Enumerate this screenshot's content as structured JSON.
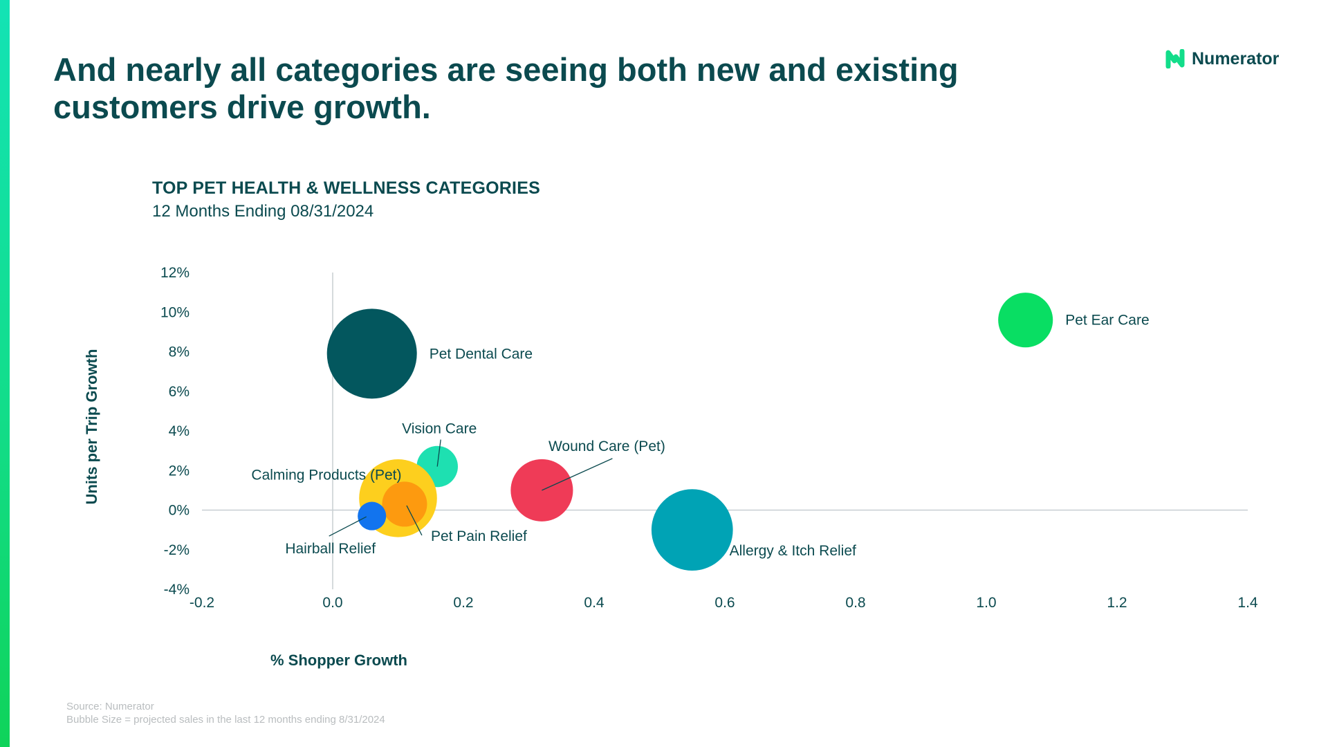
{
  "slide": {
    "headline_line1": "And nearly all categories are seeing both new and existing",
    "headline_line2": "customers drive growth.",
    "brand": "Numerator",
    "accent_color": "#13e3b5"
  },
  "footer": {
    "source": "Source: Numerator",
    "note": "Bubble Size = projected sales in the last 12 months ending 8/31/2024"
  },
  "chart_data": {
    "type": "scatter",
    "variant": "bubble",
    "title": "TOP PET HEALTH & WELLNESS CATEGORIES",
    "subtitle": "12 Months Ending 08/31/2024",
    "xlabel": "% Shopper Growth",
    "ylabel": "Units per Trip Growth",
    "xlim": [
      -0.2,
      1.4
    ],
    "ylim": [
      -4,
      12
    ],
    "x_ticks": [
      -0.2,
      0.0,
      0.2,
      0.4,
      0.6,
      0.8,
      1.0,
      1.2,
      1.4
    ],
    "x_tick_labels": [
      "-0.2",
      "0.0",
      "0.2",
      "0.4",
      "0.6",
      "0.8",
      "1.0",
      "1.2",
      "1.4"
    ],
    "y_ticks": [
      12,
      10,
      8,
      6,
      4,
      2,
      0,
      -2,
      -4
    ],
    "y_tick_labels": [
      "12%",
      "10%",
      "8%",
      "6%",
      "4%",
      "2%",
      "0%",
      "-2%",
      "-4%"
    ],
    "grid": false,
    "legend": "none",
    "series": [
      {
        "name": "Pet Dental Care",
        "x": 0.06,
        "y": 7.9,
        "size": 1.0,
        "color": "#03575e",
        "label_pos": "right"
      },
      {
        "name": "Pet Ear Care",
        "x": 1.06,
        "y": 9.6,
        "size": 0.37,
        "color": "#09de63",
        "label_pos": "right"
      },
      {
        "name": "Vision Care",
        "x": 0.16,
        "y": 2.2,
        "size": 0.21,
        "color": "#1ee0b1",
        "label_pos": "above-leader"
      },
      {
        "name": "Wound Care (Pet)",
        "x": 0.32,
        "y": 1.0,
        "size": 0.48,
        "color": "#ef3b57",
        "label_pos": "above-right-leader"
      },
      {
        "name": "Calming Products (Pet)",
        "x": 0.1,
        "y": 0.6,
        "size": 0.75,
        "color": "#fdcf1e",
        "label_pos": "left"
      },
      {
        "name": "Pet Pain Relief",
        "x": 0.11,
        "y": 0.3,
        "size": 0.25,
        "color": "#fd9a0f",
        "label_pos": "below-right-leader"
      },
      {
        "name": "Hairball Relief",
        "x": 0.06,
        "y": -0.3,
        "size": 0.1,
        "color": "#1274ee",
        "label_pos": "below-left-leader"
      },
      {
        "name": "Allergy & Itch Relief",
        "x": 0.55,
        "y": -1.0,
        "size": 0.82,
        "color": "#00a3b5",
        "label_pos": "below-right"
      }
    ]
  }
}
